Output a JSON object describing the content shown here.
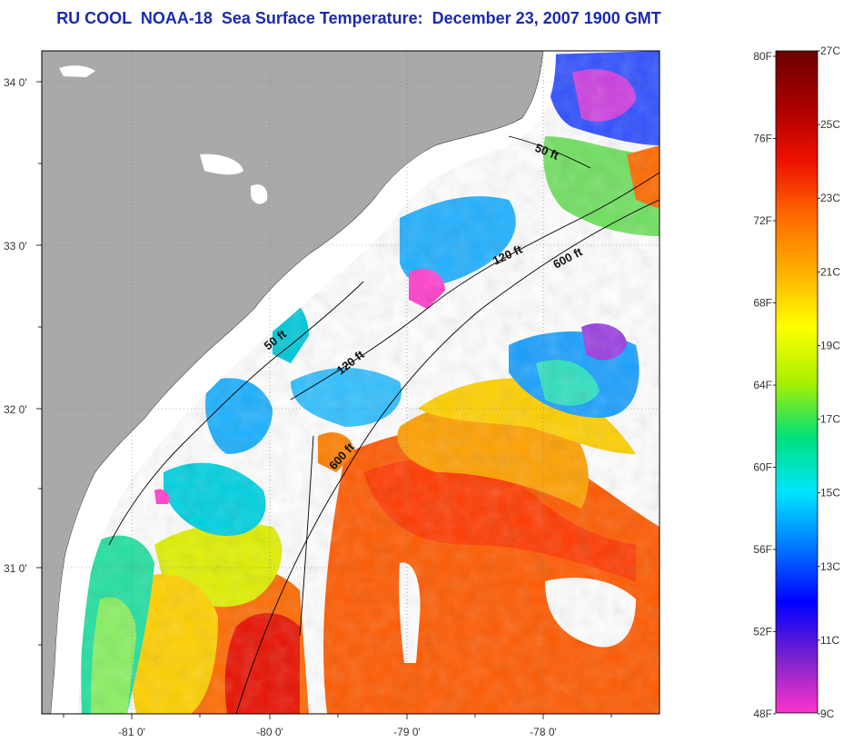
{
  "title": "RU COOL  NOAA-18  Sea Surface Temperature:  December 23, 2007 1900 GMT",
  "map": {
    "lat_labels": [
      "34 0'",
      "33 0'",
      "32 0'",
      "31 0'"
    ],
    "lon_labels": [
      "-81 0'",
      "-80 0'",
      "-79 0'",
      "-78 0'"
    ],
    "isobaths": [
      {
        "label": "50 ft"
      },
      {
        "label": "50 ft"
      },
      {
        "label": "120 ft"
      },
      {
        "label": "120 ft"
      },
      {
        "label": "600 ft"
      },
      {
        "label": "600 ft"
      }
    ],
    "colors": {
      "land": "#a9a9a9",
      "no_data": "#ffffff",
      "coastline": "#000000",
      "title": "#1a2ab0"
    }
  },
  "colorbar": {
    "fahrenheit_labels": [
      "80F",
      "76F",
      "72F",
      "68F",
      "64F",
      "60F",
      "56F",
      "52F",
      "48F"
    ],
    "celsius_labels": [
      "27C",
      "25C",
      "23C",
      "21C",
      "19C",
      "17C",
      "15C",
      "13C",
      "11C",
      "9C"
    ],
    "gradient_colors": [
      "#ff33cc",
      "#7a22cc",
      "#0000ff",
      "#0077ff",
      "#00e5ff",
      "#00e07a",
      "#aaf000",
      "#ffff00",
      "#ffb000",
      "#ff6a00",
      "#ee1100",
      "#aa0000",
      "#6a0000"
    ]
  }
}
